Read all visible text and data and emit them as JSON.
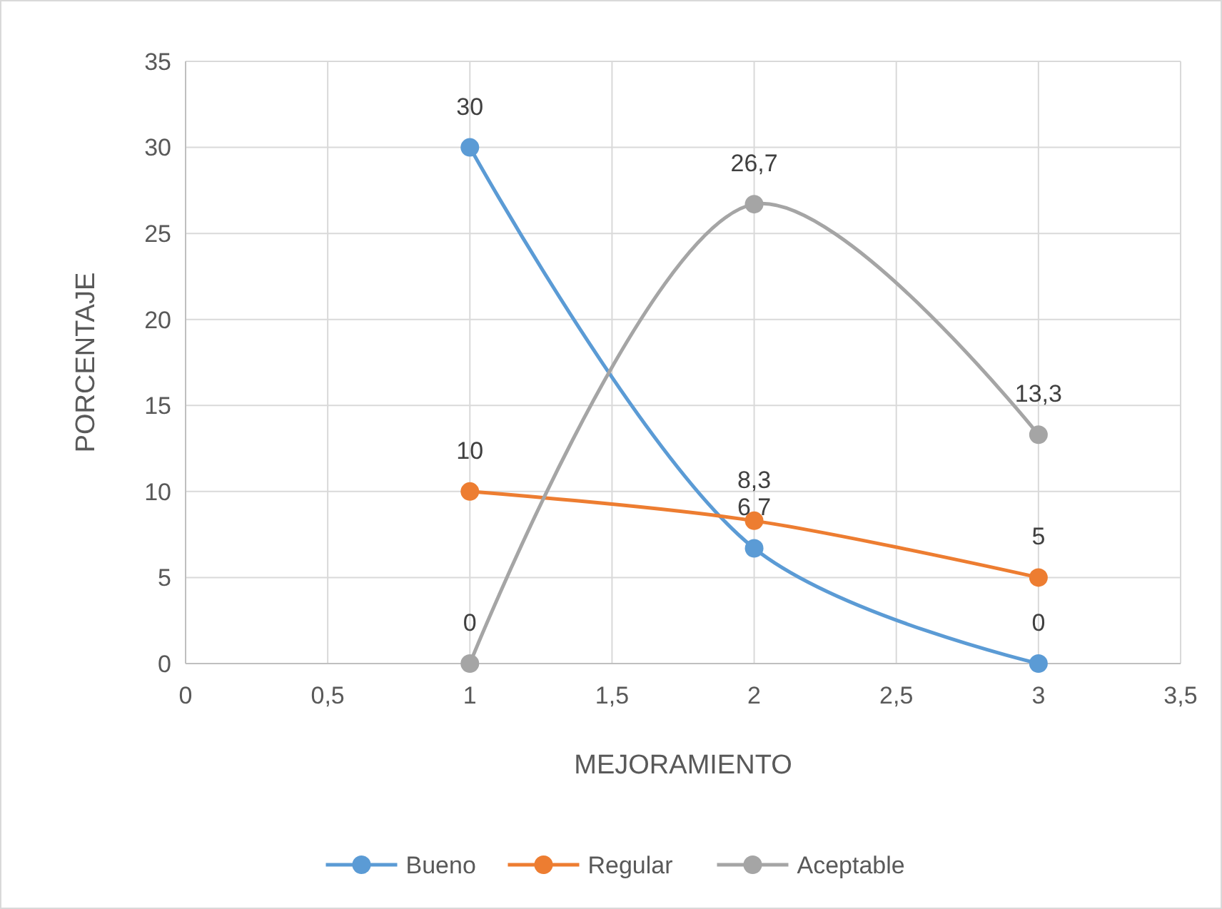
{
  "chart_data": {
    "type": "line",
    "xlabel": "MEJORAMIENTO",
    "ylabel": "PORCENTAJE",
    "x": [
      1,
      2,
      3
    ],
    "series": [
      {
        "name": "Bueno",
        "color": "#5b9bd5",
        "values": [
          30,
          6.7,
          0
        ],
        "value_labels": [
          "30",
          "6,7",
          "0"
        ]
      },
      {
        "name": "Regular",
        "color": "#ed7d31",
        "values": [
          10,
          8.3,
          5
        ],
        "value_labels": [
          "10",
          "8,3",
          "5"
        ]
      },
      {
        "name": "Aceptable",
        "color": "#a5a5a5",
        "values": [
          0,
          26.7,
          13.3
        ],
        "value_labels": [
          "0",
          "26,7",
          "13,3"
        ]
      }
    ],
    "xlim": [
      0,
      3.5
    ],
    "xticks": [
      0,
      {
        "value": 0.5,
        "label": "0,5"
      },
      1,
      {
        "value": 1.5,
        "label": "1,5"
      },
      2,
      {
        "value": 2.5,
        "label": "2,5"
      },
      3,
      {
        "value": 3.5,
        "label": "3,5"
      }
    ],
    "ylim": [
      0,
      35
    ],
    "yticks": [
      0,
      5,
      10,
      15,
      20,
      25,
      30,
      35
    ],
    "grid": true,
    "legend": "bottom",
    "marker": "circle",
    "line_style": "solid"
  }
}
